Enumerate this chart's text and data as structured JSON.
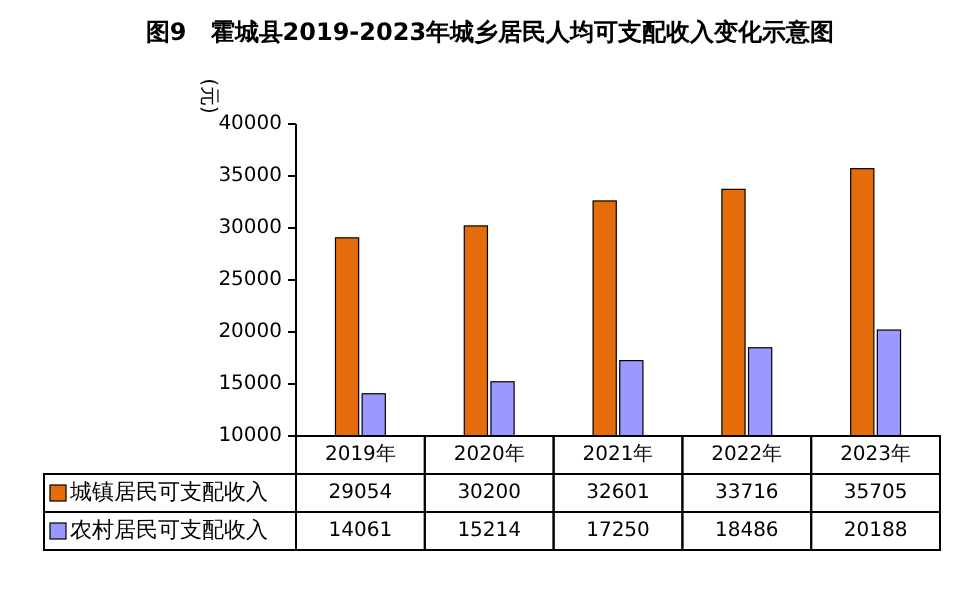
{
  "chart_data": {
    "type": "bar",
    "title": "图9　霍城县2019-2023年城乡居民人均可支配收入变化示意图",
    "ylabel": "(元)",
    "categories": [
      "2019年",
      "2020年",
      "2021年",
      "2022年",
      "2023年"
    ],
    "series": [
      {
        "name": "城镇居民可支配收入",
        "color": "#e46c0a",
        "values": [
          29054,
          30200,
          32601,
          33716,
          35705
        ]
      },
      {
        "name": "农村居民可支配收入",
        "color": "#9999ff",
        "values": [
          14061,
          15214,
          17250,
          18486,
          20188
        ]
      }
    ],
    "ylim": [
      10000,
      40000
    ],
    "yticks": [
      10000,
      15000,
      20000,
      25000,
      30000,
      35000,
      40000
    ],
    "data_labels": true,
    "legend": "bottom left"
  }
}
